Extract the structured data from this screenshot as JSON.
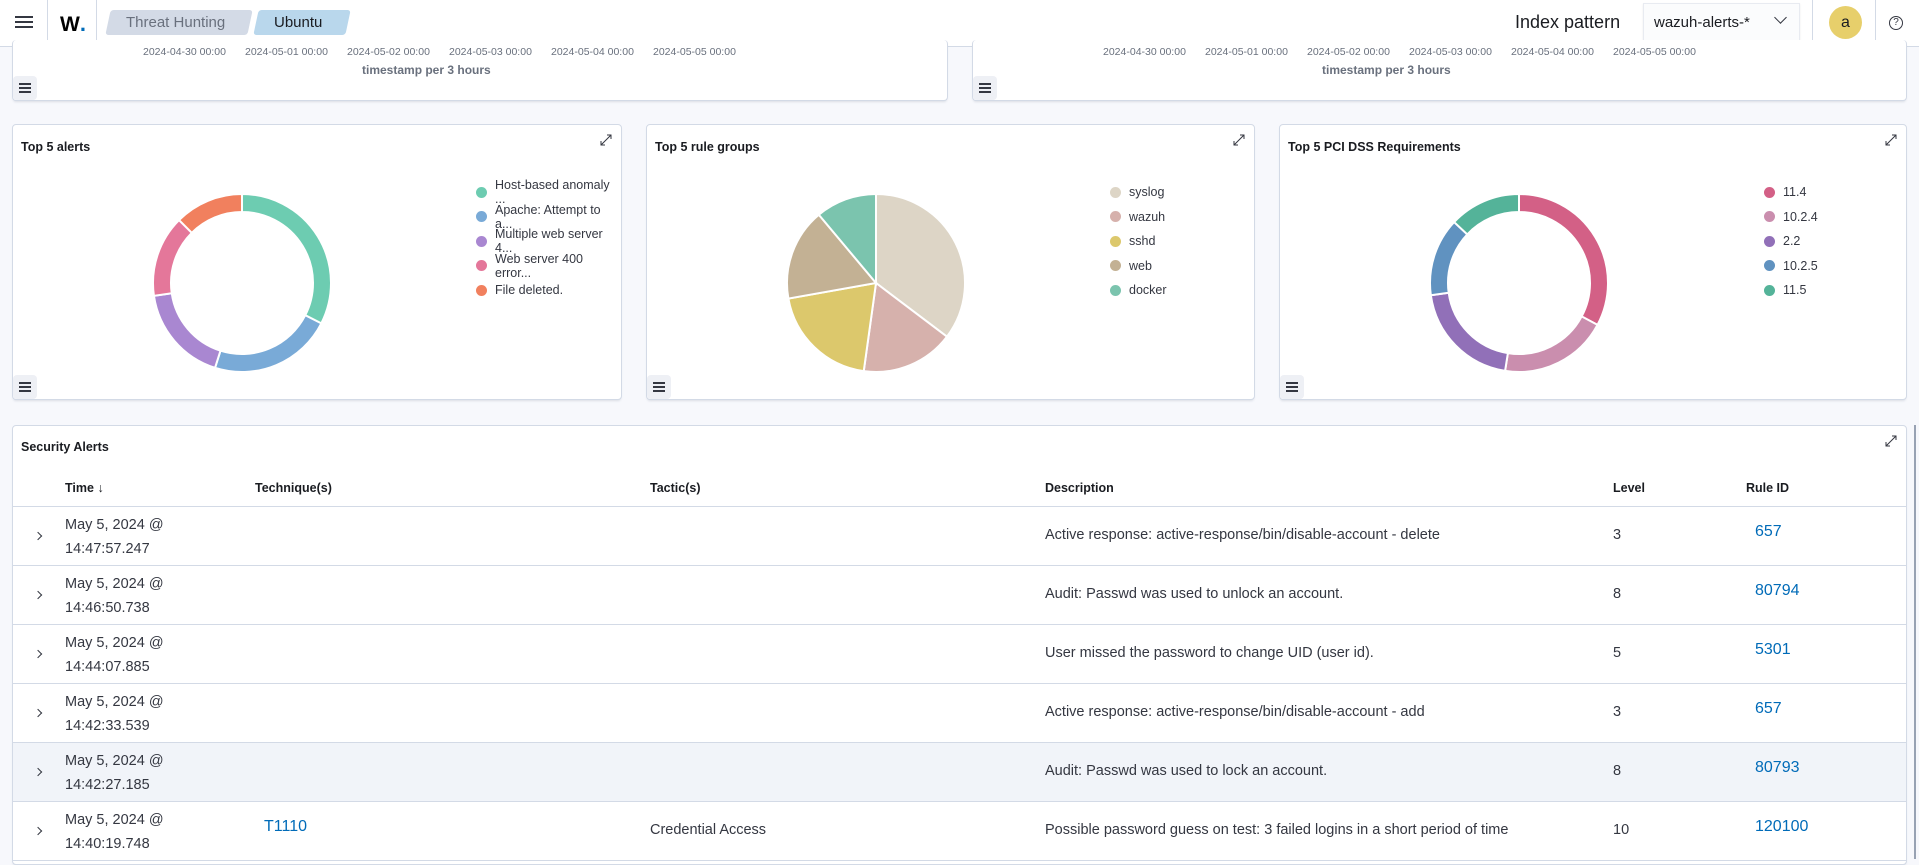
{
  "header": {
    "breadcrumbs": [
      "Threat Hunting",
      "Ubuntu"
    ],
    "index_pattern_label": "Index pattern",
    "index_pattern_value": "wazuh-alerts-*",
    "avatar_initial": "a",
    "help_glyph": "?"
  },
  "top_panels": [
    {
      "ticks": [
        "2024-04-30 00:00",
        "2024-05-01 00:00",
        "2024-05-02 00:00",
        "2024-05-03 00:00",
        "2024-05-04 00:00",
        "2024-05-05 00:00"
      ],
      "xlabel": "timestamp per 3 hours"
    },
    {
      "ticks": [
        "2024-04-30 00:00",
        "2024-05-01 00:00",
        "2024-05-02 00:00",
        "2024-05-03 00:00",
        "2024-05-04 00:00",
        "2024-05-05 00:00"
      ],
      "xlabel": "timestamp per 3 hours"
    }
  ],
  "chart_data": [
    {
      "type": "pie",
      "donut": true,
      "title": "Top 5 alerts",
      "legend": "right",
      "categories": [
        "Host-based anomaly ...",
        "Apache: Attempt to a...",
        "Multiple web server 4...",
        "Web server 400 error...",
        "File deleted."
      ],
      "values": [
        32.5,
        22.4,
        17.8,
        14.8,
        12.5
      ],
      "colors": [
        "#6dccb1",
        "#79aad7",
        "#a987d1",
        "#e4779a",
        "#f1805e"
      ]
    },
    {
      "type": "pie",
      "donut": false,
      "title": "Top 5 rule groups",
      "legend": "right",
      "categories": [
        "syslog",
        "wazuh",
        "sshd",
        "web",
        "docker"
      ],
      "values": [
        35.3,
        16.9,
        20,
        16.7,
        11.1
      ],
      "colors": [
        "#ddd5c6",
        "#d6b1ac",
        "#dcc86c",
        "#c3b194",
        "#7bc4ae"
      ]
    },
    {
      "type": "pie",
      "donut": true,
      "title": "Top 5 PCI DSS Requirements",
      "legend": "right",
      "categories": [
        "11.4",
        "10.2.4",
        "2.2",
        "10.2.5",
        "11.5"
      ],
      "values": [
        32.8,
        19.7,
        20.3,
        14.2,
        13
      ],
      "colors": [
        "#d36086",
        "#ca8eae",
        "#9170b8",
        "#6092c0",
        "#54b399"
      ]
    }
  ],
  "alerts_table": {
    "title": "Security Alerts",
    "columns": [
      "Time",
      "Technique(s)",
      "Tactic(s)",
      "Description",
      "Level",
      "Rule ID"
    ],
    "sort_indicator": "↓",
    "rows": [
      {
        "date": "May 5, 2024 @",
        "time": "14:47:57.247",
        "technique": "",
        "tactic": "",
        "description": "Active response: active-response/bin/disable-account - delete",
        "level": "3",
        "rule_id": "657"
      },
      {
        "date": "May 5, 2024 @",
        "time": "14:46:50.738",
        "technique": "",
        "tactic": "",
        "description": "Audit: Passwd was used to unlock an account.",
        "level": "8",
        "rule_id": "80794"
      },
      {
        "date": "May 5, 2024 @",
        "time": "14:44:07.885",
        "technique": "",
        "tactic": "",
        "description": "User missed the password to change UID (user id).",
        "level": "5",
        "rule_id": "5301"
      },
      {
        "date": "May 5, 2024 @",
        "time": "14:42:33.539",
        "technique": "",
        "tactic": "",
        "description": "Active response: active-response/bin/disable-account - add",
        "level": "3",
        "rule_id": "657"
      },
      {
        "date": "May 5, 2024 @",
        "time": "14:42:27.185",
        "technique": "",
        "tactic": "",
        "description": "Audit: Passwd was used to lock an account.",
        "level": "8",
        "rule_id": "80793"
      },
      {
        "date": "May 5, 2024 @",
        "time": "14:40:19.748",
        "technique": "T1110",
        "tactic": "Credential Access",
        "description": "Possible password guess on test: 3 failed logins in a short period of time",
        "level": "10",
        "rule_id": "120100"
      }
    ]
  }
}
